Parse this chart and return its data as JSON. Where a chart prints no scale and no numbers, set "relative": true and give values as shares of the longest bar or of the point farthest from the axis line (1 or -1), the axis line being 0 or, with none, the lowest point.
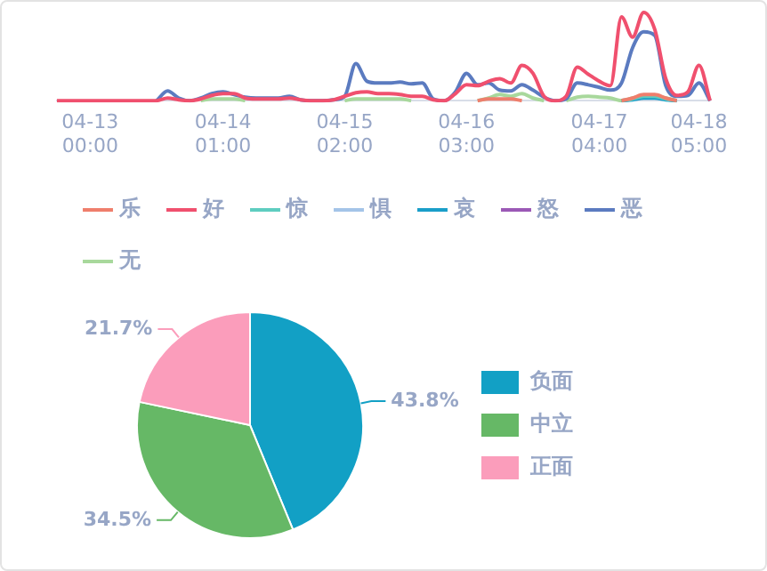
{
  "chart_data": [
    {
      "type": "line",
      "relative": true,
      "legend": "bottom left",
      "marker": "none",
      "line_style": "solid",
      "categories": [
        null,
        null,
        null,
        "04-13 00:00",
        null,
        null,
        null,
        null,
        null,
        null,
        null,
        null,
        null,
        null,
        null,
        "04-14 01:00",
        null,
        null,
        null,
        null,
        null,
        null,
        null,
        null,
        null,
        null,
        "04-15 02:00",
        null,
        null,
        null,
        null,
        null,
        null,
        null,
        null,
        null,
        null,
        "04-16 03:00",
        null,
        null,
        null,
        null,
        null,
        null,
        null,
        null,
        null,
        null,
        null,
        "04-17 04:00",
        null,
        null,
        null,
        null,
        null,
        null,
        null,
        null,
        "04-18 05:00",
        null
      ],
      "series": [
        {
          "name": "乐",
          "color": "#ef7e6c",
          "values": [
            null,
            null,
            null,
            null,
            null,
            null,
            null,
            null,
            null,
            null,
            null,
            null,
            null,
            null,
            null,
            null,
            null,
            null,
            null,
            null,
            null,
            null,
            null,
            null,
            null,
            null,
            null,
            null,
            null,
            null,
            null,
            null,
            null,
            null,
            null,
            null,
            null,
            null,
            0,
            0.02,
            0.02,
            0.02,
            0,
            null,
            null,
            null,
            null,
            null,
            null,
            null,
            null,
            0,
            0.03,
            0.07,
            0.07,
            0.03,
            0,
            null,
            null,
            null
          ]
        },
        {
          "name": "好",
          "color": "#f0506e",
          "values": [
            0,
            0,
            0,
            0,
            0,
            0,
            0,
            0,
            0,
            0,
            0.03,
            0.01,
            0,
            0.02,
            0.06,
            0.08,
            0.08,
            0.03,
            0.02,
            0.02,
            0.02,
            0.03,
            0.01,
            0,
            0,
            0.01,
            0.05,
            0.09,
            0.1,
            0.08,
            0.08,
            0.07,
            0.05,
            0.05,
            0.01,
            0,
            0.08,
            0.18,
            0.17,
            0.22,
            0.25,
            0.2,
            0.4,
            0.31,
            0.05,
            0,
            0.05,
            0.38,
            0.3,
            0.22,
            0.17,
            0.95,
            0.72,
            1,
            0.81,
            0.25,
            0.06,
            0.1,
            0.4,
            0
          ]
        },
        {
          "name": "惊",
          "color": "#5ecdc0",
          "values": [
            null,
            null,
            null,
            null,
            null,
            null,
            null,
            null,
            null,
            null,
            null,
            null,
            null,
            null,
            null,
            null,
            null,
            null,
            null,
            null,
            null,
            null,
            null,
            null,
            null,
            null,
            null,
            null,
            null,
            null,
            null,
            null,
            null,
            null,
            null,
            null,
            null,
            null,
            null,
            null,
            null,
            null,
            null,
            null,
            null,
            null,
            null,
            null,
            null,
            null,
            null,
            0,
            0.02,
            0.05,
            0.05,
            0.02,
            0,
            null,
            null,
            null
          ]
        },
        {
          "name": "惧",
          "color": "#a4c4e8",
          "values": [
            null,
            null,
            null,
            null,
            null,
            null,
            null,
            null,
            null,
            null,
            null,
            null,
            null,
            null,
            null,
            null,
            null,
            null,
            null,
            null,
            null,
            null,
            null,
            null,
            null,
            null,
            null,
            null,
            null,
            null,
            null,
            null,
            null,
            null,
            null,
            null,
            null,
            null,
            null,
            null,
            null,
            null,
            null,
            null,
            null,
            null,
            null,
            null,
            null,
            null,
            null,
            null,
            null,
            null,
            null,
            null,
            null,
            null,
            null,
            null
          ]
        },
        {
          "name": "哀",
          "color": "#1a9ec9",
          "values": [
            null,
            null,
            null,
            null,
            null,
            null,
            null,
            null,
            null,
            null,
            null,
            null,
            null,
            null,
            null,
            null,
            null,
            null,
            null,
            null,
            null,
            null,
            null,
            null,
            null,
            null,
            null,
            null,
            null,
            null,
            null,
            null,
            null,
            null,
            null,
            null,
            null,
            null,
            null,
            null,
            null,
            null,
            null,
            null,
            null,
            null,
            null,
            null,
            null,
            null,
            null,
            0,
            0.01,
            0.03,
            0.03,
            0.01,
            0,
            null,
            null,
            null
          ]
        },
        {
          "name": "怒",
          "color": "#9b59b6",
          "values": [
            null,
            null,
            null,
            null,
            null,
            null,
            null,
            null,
            null,
            null,
            null,
            null,
            null,
            null,
            null,
            null,
            null,
            null,
            null,
            null,
            null,
            null,
            null,
            null,
            null,
            null,
            null,
            null,
            null,
            null,
            null,
            null,
            null,
            null,
            null,
            null,
            null,
            null,
            null,
            null,
            null,
            null,
            null,
            null,
            null,
            null,
            null,
            null,
            null,
            null,
            null,
            null,
            null,
            null,
            null,
            null,
            null,
            null,
            null,
            null
          ]
        },
        {
          "name": "恶",
          "color": "#5b7bc0",
          "values": [
            null,
            null,
            null,
            null,
            null,
            null,
            null,
            null,
            null,
            0,
            0.11,
            0.03,
            0,
            0.03,
            0.08,
            0.1,
            0.07,
            0.04,
            0.03,
            0.03,
            0.03,
            0.05,
            0.01,
            0,
            0,
            0.01,
            0.05,
            0.42,
            0.22,
            0.2,
            0.2,
            0.21,
            0.19,
            0.2,
            0.02,
            0,
            0.1,
            0.31,
            0.18,
            0.2,
            0.12,
            0.11,
            0.18,
            0.12,
            0.04,
            0,
            0.02,
            0.2,
            0.18,
            0.15,
            0.12,
            0.2,
            0.6,
            0.78,
            0.74,
            0.17,
            0.05,
            0.06,
            0.2,
            0
          ]
        },
        {
          "name": "无",
          "color": "#a8d89c",
          "values": [
            null,
            null,
            null,
            null,
            null,
            null,
            null,
            null,
            null,
            null,
            null,
            null,
            null,
            0,
            0.02,
            0.02,
            0.02,
            0,
            null,
            null,
            null,
            null,
            null,
            null,
            null,
            null,
            0,
            0.02,
            0.02,
            0.02,
            0.02,
            0.02,
            0,
            null,
            null,
            null,
            null,
            null,
            0,
            0.03,
            0.07,
            0.05,
            0.08,
            0.03,
            0,
            null,
            0,
            0.04,
            0.05,
            0.04,
            0.03,
            0,
            0.03,
            0.05,
            0.05,
            0.03,
            0,
            null,
            null,
            null
          ]
        }
      ]
    },
    {
      "type": "pie",
      "legend": "right",
      "categories": [
        "负面",
        "中立",
        "正面"
      ],
      "values": [
        43.8,
        34.5,
        21.7
      ],
      "colors": [
        "#12a0c5",
        "#66b866",
        "#fb9dbb"
      ],
      "value_labels": [
        "43.8%",
        "34.5%",
        "21.7%"
      ]
    }
  ]
}
